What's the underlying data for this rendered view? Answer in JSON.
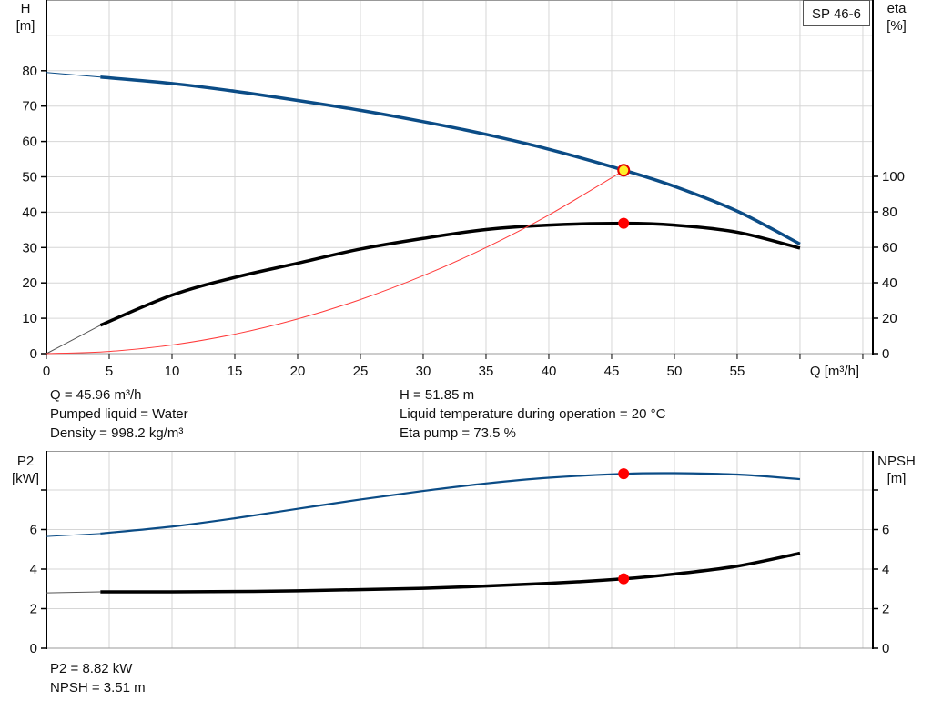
{
  "chart_data": [
    {
      "type": "line",
      "title": "SP 46-6",
      "xlabel": "Q [m³/h]",
      "ylabel": "H\n[m]",
      "ylabel_right": "eta\n[%]",
      "xlim": [
        0,
        65.8
      ],
      "ylim": [
        0,
        100
      ],
      "ylim_right": [
        0,
        200
      ],
      "x_ticks": [
        0,
        5,
        10,
        15,
        20,
        25,
        30,
        35,
        40,
        45,
        50,
        55
      ],
      "y_ticks": [
        0,
        10,
        20,
        30,
        40,
        50,
        60,
        70,
        80
      ],
      "y_ticks_right": [
        0,
        20,
        40,
        60,
        80,
        100
      ],
      "grid": true,
      "series": [
        {
          "id": "head",
          "axis": "left",
          "color": "#0b4c86",
          "extrapolated": {
            "x": [
              0,
              4.3
            ],
            "y": [
              79.5,
              78.2
            ]
          },
          "x": [
            4.3,
            10,
            15,
            20,
            25,
            30,
            35,
            40,
            46,
            50,
            55,
            60
          ],
          "y": [
            78.2,
            76.4,
            74.2,
            71.6,
            68.8,
            65.6,
            62.0,
            57.8,
            51.85,
            47.3,
            40.3,
            31.0
          ]
        },
        {
          "id": "eta",
          "axis": "right",
          "color": "#000000",
          "extrapolated": {
            "x": [
              0,
              4.3
            ],
            "y": [
              0,
              16
            ]
          },
          "x": [
            4.3,
            10,
            15,
            20,
            25,
            30,
            35,
            40,
            46,
            50,
            55,
            60
          ],
          "y": [
            16,
            33,
            43,
            51,
            59,
            65,
            70,
            72.5,
            73.5,
            72.5,
            68.5,
            59.5
          ]
        },
        {
          "id": "system",
          "axis": "left",
          "color": "#ff3b3b",
          "x": [
            0,
            5,
            10,
            15,
            20,
            25,
            30,
            35,
            40,
            46
          ],
          "y": [
            0,
            0.61,
            2.45,
            5.51,
            9.8,
            15.3,
            22.05,
            30.0,
            39.2,
            51.85
          ]
        }
      ],
      "operating_points": [
        {
          "series": "head",
          "x": 45.96,
          "y": 51.85,
          "fill": "#ffef2a",
          "stroke": "#e00000"
        },
        {
          "series": "eta",
          "x": 45.96,
          "y": 73.5,
          "fill": "#ff0000",
          "stroke": "#ff0000"
        }
      ]
    },
    {
      "type": "line",
      "xlabel": "",
      "ylabel": "P2\n[kW]",
      "ylabel_right": "NPSH\n[m]",
      "xlim": [
        0,
        65.8
      ],
      "ylim": [
        0,
        10
      ],
      "ylim_right": [
        0,
        10
      ],
      "y_ticks": [
        0,
        2,
        4,
        6,
        8
      ],
      "y_tick_labels": [
        "0",
        "2",
        "4",
        "6",
        ""
      ],
      "y_ticks_right": [
        0,
        2,
        4,
        6,
        8
      ],
      "y_tick_labels_right": [
        "0",
        "2",
        "4",
        "6",
        ""
      ],
      "grid": true,
      "series": [
        {
          "id": "p2",
          "axis": "left",
          "color": "#0b4c86",
          "extrapolated": {
            "x": [
              0,
              4.3
            ],
            "y": [
              5.65,
              5.8
            ]
          },
          "x": [
            4.3,
            10,
            15,
            20,
            25,
            30,
            35,
            40,
            46,
            50,
            55,
            60
          ],
          "y": [
            5.8,
            6.15,
            6.57,
            7.05,
            7.52,
            7.95,
            8.33,
            8.62,
            8.82,
            8.85,
            8.78,
            8.55
          ]
        },
        {
          "id": "npsh",
          "axis": "right",
          "color": "#000000",
          "extrapolated": {
            "x": [
              0,
              4.3
            ],
            "y": [
              2.8,
              2.85
            ]
          },
          "x": [
            4.3,
            10,
            20,
            30,
            40,
            46,
            50,
            55,
            60
          ],
          "y": [
            2.85,
            2.85,
            2.9,
            3.03,
            3.28,
            3.51,
            3.75,
            4.15,
            4.8
          ]
        }
      ],
      "operating_points": [
        {
          "series": "p2",
          "x": 45.96,
          "y": 8.82,
          "fill": "#ff0000",
          "stroke": "#ff0000"
        },
        {
          "series": "npsh",
          "x": 45.96,
          "y": 3.51,
          "fill": "#ff0000",
          "stroke": "#ff0000"
        }
      ]
    }
  ],
  "info_top_left": [
    "Q = 45.96 m³/h",
    "Pumped liquid = Water",
    "Density = 998.2 kg/m³"
  ],
  "info_top_right": [
    "H = 51.85 m",
    "Liquid temperature during operation = 20 °C",
    "Eta pump = 73.5 %"
  ],
  "info_bottom": [
    "P2 = 8.82 kW",
    "NPSH = 3.51 m"
  ]
}
